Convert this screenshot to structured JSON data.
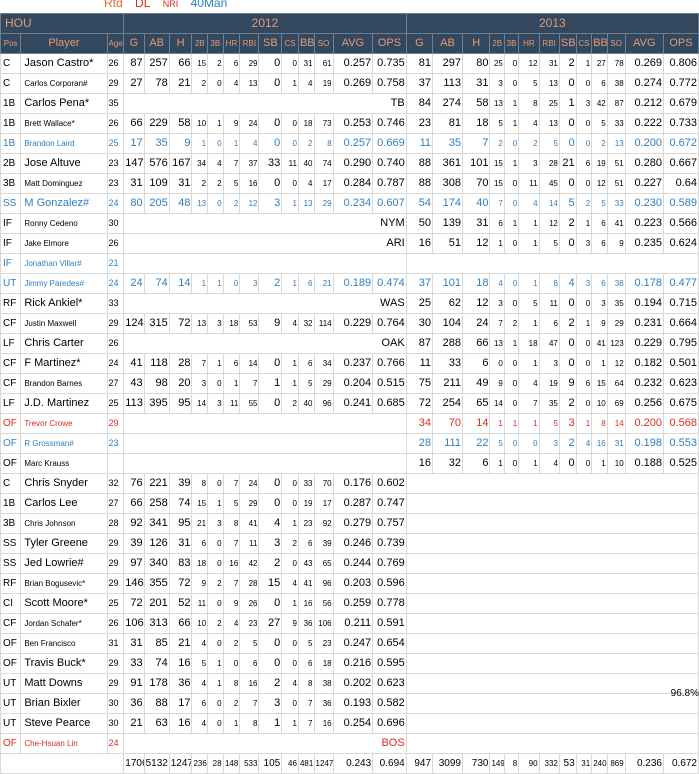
{
  "legend": [
    {
      "label": "Rtd",
      "color": "#dd6a20"
    },
    {
      "label": "DL",
      "color": "#dd2a20"
    },
    {
      "label": "NRI",
      "color": "#dd2a20"
    },
    {
      "label": "40Man",
      "color": "#2e7ec2"
    }
  ],
  "header": {
    "team": "HOU",
    "season1": "2012",
    "season2": "2013",
    "col_pos": "Pos",
    "col_player": "Player",
    "col_age": "Age",
    "stats": [
      "G",
      "AB",
      "H",
      "2B",
      "3B",
      "HR",
      "RBI",
      "SB",
      "CS",
      "BB",
      "SO",
      "AVG",
      "OPS"
    ],
    "stats2013": [
      "G",
      "AB",
      "H",
      "2B",
      "3B",
      "HR",
      "RBI",
      "SB",
      "CS",
      "BB",
      "SO",
      "AVG",
      "OPS"
    ]
  },
  "rows": [
    {
      "pos": "C",
      "name": "Jason Castro*",
      "age": "26",
      "s12": [
        "87",
        "257",
        "66",
        "15",
        "2",
        "6",
        "29",
        "0",
        "0",
        "31",
        "61",
        "0.257",
        "0.735"
      ],
      "s13": [
        "81",
        "297",
        "80",
        "25",
        "0",
        "12",
        "31",
        "2",
        "1",
        "27",
        "78",
        "0.269",
        "0.806"
      ],
      "style": "normal"
    },
    {
      "pos": "C",
      "name": "Carlos Corporan#",
      "age": "29",
      "s12": [
        "27",
        "78",
        "21",
        "2",
        "0",
        "4",
        "13",
        "0",
        "1",
        "4",
        "19",
        "0.269",
        "0.758"
      ],
      "s13": [
        "37",
        "113",
        "31",
        "3",
        "0",
        "5",
        "13",
        "0",
        "0",
        "6",
        "38",
        "0.274",
        "0.772"
      ],
      "style": "normal",
      "smallname": true
    },
    {
      "pos": "1B",
      "name": "Carlos Pena*",
      "age": "35",
      "team12": "TB",
      "s13": [
        "84",
        "274",
        "58",
        "13",
        "1",
        "8",
        "25",
        "1",
        "3",
        "42",
        "87",
        "0.212",
        "0.679"
      ],
      "style": "normal"
    },
    {
      "pos": "1B",
      "name": "Brett Wallace*",
      "age": "26",
      "s12": [
        "66",
        "229",
        "58",
        "10",
        "1",
        "9",
        "24",
        "0",
        "0",
        "18",
        "73",
        "0.253",
        "0.746"
      ],
      "s13": [
        "23",
        "81",
        "18",
        "5",
        "1",
        "4",
        "13",
        "0",
        "0",
        "5",
        "33",
        "0.222",
        "0.733"
      ],
      "style": "normal",
      "smallname": true
    },
    {
      "pos": "1B",
      "name": "Brandon Laird",
      "age": "25",
      "s12": [
        "17",
        "35",
        "9",
        "1",
        "0",
        "1",
        "4",
        "0",
        "0",
        "2",
        "8",
        "0.257",
        "0.669"
      ],
      "s13": [
        "11",
        "35",
        "7",
        "2",
        "0",
        "2",
        "5",
        "0",
        "0",
        "2",
        "13",
        "0.200",
        "0.672"
      ],
      "style": "blue",
      "smallname": true
    },
    {
      "pos": "2B",
      "name": "Jose Altuve",
      "age": "23",
      "s12": [
        "147",
        "576",
        "167",
        "34",
        "4",
        "7",
        "37",
        "33",
        "11",
        "40",
        "74",
        "0.290",
        "0.740"
      ],
      "s13": [
        "88",
        "361",
        "101",
        "15",
        "1",
        "3",
        "28",
        "21",
        "6",
        "19",
        "51",
        "0.280",
        "0.667"
      ],
      "style": "normal"
    },
    {
      "pos": "3B",
      "name": "Matt Dominguez",
      "age": "23",
      "s12": [
        "31",
        "109",
        "31",
        "2",
        "2",
        "5",
        "16",
        "0",
        "0",
        "4",
        "17",
        "0.284",
        "0.787"
      ],
      "s13": [
        "88",
        "308",
        "70",
        "15",
        "0",
        "11",
        "45",
        "0",
        "0",
        "12",
        "51",
        "0.227",
        "0.64"
      ],
      "style": "normal",
      "smallname": true
    },
    {
      "pos": "SS",
      "name": "M Gonzalez#",
      "age": "24",
      "s12": [
        "80",
        "205",
        "48",
        "13",
        "0",
        "2",
        "12",
        "3",
        "1",
        "13",
        "29",
        "0.234",
        "0.607"
      ],
      "s13": [
        "54",
        "174",
        "40",
        "7",
        "0",
        "4",
        "14",
        "5",
        "2",
        "5",
        "33",
        "0.230",
        "0.589"
      ],
      "style": "blue"
    },
    {
      "pos": "IF",
      "name": "Ronny Cedeno",
      "age": "30",
      "team12": "NYM",
      "s13": [
        "50",
        "139",
        "31",
        "6",
        "1",
        "1",
        "12",
        "2",
        "1",
        "6",
        "41",
        "0.223",
        "0.566"
      ],
      "style": "normal",
      "smallname": true
    },
    {
      "pos": "IF",
      "name": "Jake Elmore",
      "age": "26",
      "team12": "ARI",
      "s13": [
        "16",
        "51",
        "12",
        "1",
        "0",
        "1",
        "5",
        "0",
        "3",
        "6",
        "9",
        "0.235",
        "0.624"
      ],
      "style": "normal",
      "smallname": true
    },
    {
      "pos": "IF",
      "name": "Jonathan Villar#",
      "age": "21",
      "s12": [],
      "s13": [],
      "style": "blue",
      "tinyname": true,
      "empty": true
    },
    {
      "pos": "UT",
      "name": "Jimmy Paredes#",
      "age": "24",
      "s12": [
        "24",
        "74",
        "14",
        "1",
        "1",
        "0",
        "3",
        "2",
        "1",
        "6",
        "21",
        "0.189",
        "0.474"
      ],
      "s13": [
        "37",
        "101",
        "18",
        "4",
        "0",
        "1",
        "8",
        "4",
        "3",
        "6",
        "38",
        "0.178",
        "0.477"
      ],
      "style": "blue",
      "tinyname": true
    },
    {
      "pos": "RF",
      "name": "Rick Ankiel*",
      "age": "33",
      "team12": "WAS",
      "s13": [
        "25",
        "62",
        "12",
        "3",
        "0",
        "5",
        "11",
        "0",
        "0",
        "3",
        "35",
        "0.194",
        "0.715"
      ],
      "style": "normal"
    },
    {
      "pos": "CF",
      "name": "Justin Maxwell",
      "age": "29",
      "s12": [
        "124",
        "315",
        "72",
        "13",
        "3",
        "18",
        "53",
        "9",
        "4",
        "32",
        "114",
        "0.229",
        "0.764"
      ],
      "s13": [
        "30",
        "104",
        "24",
        "7",
        "2",
        "1",
        "6",
        "2",
        "1",
        "9",
        "29",
        "0.231",
        "0.664"
      ],
      "style": "normal",
      "smallname": true
    },
    {
      "pos": "LF",
      "name": "Chris Carter",
      "age": "26",
      "team12": "OAK",
      "s13": [
        "87",
        "288",
        "66",
        "13",
        "1",
        "18",
        "47",
        "0",
        "0",
        "41",
        "123",
        "0.229",
        "0.795"
      ],
      "style": "normal"
    },
    {
      "pos": "CF",
      "name": "F Martinez*",
      "age": "24",
      "s12": [
        "41",
        "118",
        "28",
        "7",
        "1",
        "6",
        "14",
        "0",
        "1",
        "6",
        "34",
        "0.237",
        "0.766"
      ],
      "s13": [
        "11",
        "33",
        "6",
        "0",
        "0",
        "1",
        "3",
        "0",
        "0",
        "1",
        "12",
        "0.182",
        "0.501"
      ],
      "style": "normal"
    },
    {
      "pos": "CF",
      "name": "Brandon Barnes",
      "age": "27",
      "s12": [
        "43",
        "98",
        "20",
        "3",
        "0",
        "1",
        "7",
        "1",
        "1",
        "5",
        "29",
        "0.204",
        "0.515"
      ],
      "s13": [
        "75",
        "211",
        "49",
        "9",
        "0",
        "4",
        "19",
        "9",
        "6",
        "15",
        "64",
        "0.232",
        "0.623"
      ],
      "style": "normal",
      "smallname": true
    },
    {
      "pos": "LF",
      "name": "J.D. Martinez",
      "age": "25",
      "s12": [
        "113",
        "395",
        "95",
        "14",
        "3",
        "11",
        "55",
        "0",
        "2",
        "40",
        "96",
        "0.241",
        "0.685"
      ],
      "s13": [
        "72",
        "254",
        "65",
        "14",
        "0",
        "7",
        "35",
        "2",
        "0",
        "10",
        "69",
        "0.256",
        "0.675"
      ],
      "style": "normal"
    },
    {
      "pos": "OF",
      "name": "Trevor Crowe",
      "age": "29",
      "s12": [],
      "s13": [
        "34",
        "70",
        "14",
        "1",
        "1",
        "1",
        "5",
        "3",
        "1",
        "8",
        "14",
        "0.200",
        "0.568"
      ],
      "style": "red",
      "smallname": true
    },
    {
      "pos": "OF",
      "name": "R Grossman#",
      "age": "23",
      "s12": [],
      "s13": [
        "28",
        "111",
        "22",
        "5",
        "0",
        "0",
        "3",
        "2",
        "4",
        "16",
        "31",
        "0.198",
        "0.553"
      ],
      "style": "blue",
      "smallname": true
    },
    {
      "pos": "OF",
      "name": "Marc Krauss",
      "age": "",
      "s12": [],
      "s13": [
        "16",
        "32",
        "6",
        "1",
        "0",
        "1",
        "4",
        "0",
        "0",
        "1",
        "10",
        "0.188",
        "0.525"
      ],
      "style": "normal",
      "smallname": true
    },
    {
      "pos": "C",
      "name": "Chris Snyder",
      "age": "32",
      "s12": [
        "76",
        "221",
        "39",
        "8",
        "0",
        "7",
        "24",
        "0",
        "0",
        "33",
        "70",
        "0.176",
        "0.602"
      ],
      "s13": [],
      "style": "normal"
    },
    {
      "pos": "1B",
      "name": "Carlos Lee",
      "age": "27",
      "s12": [
        "66",
        "258",
        "74",
        "15",
        "1",
        "5",
        "29",
        "0",
        "0",
        "19",
        "17",
        "0.287",
        "0.747"
      ],
      "s13": [],
      "style": "normal"
    },
    {
      "pos": "3B",
      "name": "Chris Johnson",
      "age": "28",
      "s12": [
        "92",
        "341",
        "95",
        "21",
        "3",
        "8",
        "41",
        "4",
        "1",
        "23",
        "92",
        "0.279",
        "0.757"
      ],
      "s13": [],
      "style": "normal",
      "smallname": true
    },
    {
      "pos": "SS",
      "name": "Tyler Greene",
      "age": "29",
      "s12": [
        "39",
        "126",
        "31",
        "6",
        "0",
        "7",
        "11",
        "3",
        "2",
        "6",
        "39",
        "0.246",
        "0.739"
      ],
      "s13": [],
      "style": "normal"
    },
    {
      "pos": "SS",
      "name": "Jed Lowrie#",
      "age": "29",
      "s12": [
        "97",
        "340",
        "83",
        "18",
        "0",
        "16",
        "42",
        "2",
        "0",
        "43",
        "65",
        "0.244",
        "0.769"
      ],
      "s13": [],
      "style": "normal"
    },
    {
      "pos": "RF",
      "name": "Brian Bogusevic*",
      "age": "29",
      "s12": [
        "146",
        "355",
        "72",
        "9",
        "2",
        "7",
        "28",
        "15",
        "4",
        "41",
        "96",
        "0.203",
        "0.596"
      ],
      "s13": [],
      "style": "normal",
      "tinyname": true
    },
    {
      "pos": "CI",
      "name": "Scott Moore*",
      "age": "25",
      "s12": [
        "72",
        "201",
        "52",
        "11",
        "0",
        "9",
        "26",
        "0",
        "1",
        "16",
        "56",
        "0.259",
        "0.778"
      ],
      "s13": [],
      "style": "normal"
    },
    {
      "pos": "CF",
      "name": "Jordan Schafer*",
      "age": "26",
      "s12": [
        "106",
        "313",
        "66",
        "10",
        "2",
        "4",
        "23",
        "27",
        "9",
        "36",
        "106",
        "0.211",
        "0.591"
      ],
      "s13": [],
      "style": "normal",
      "tinyname": true
    },
    {
      "pos": "OF",
      "name": "Ben Francisco",
      "age": "31",
      "s12": [
        "31",
        "85",
        "21",
        "4",
        "0",
        "2",
        "5",
        "0",
        "0",
        "5",
        "23",
        "0.247",
        "0.654"
      ],
      "s13": [],
      "style": "normal",
      "smallname": true
    },
    {
      "pos": "OF",
      "name": "Travis Buck*",
      "age": "29",
      "s12": [
        "33",
        "74",
        "16",
        "5",
        "1",
        "0",
        "6",
        "0",
        "0",
        "6",
        "18",
        "0.216",
        "0.595"
      ],
      "s13": [],
      "style": "normal"
    },
    {
      "pos": "UT",
      "name": "Matt Downs",
      "age": "29",
      "s12": [
        "91",
        "178",
        "36",
        "4",
        "1",
        "8",
        "16",
        "2",
        "4",
        "8",
        "38",
        "0.202",
        "0.623"
      ],
      "s13": [],
      "style": "normal"
    },
    {
      "pos": "UT",
      "name": "Brian Bixler",
      "age": "30",
      "s12": [
        "36",
        "88",
        "17",
        "6",
        "0",
        "2",
        "7",
        "3",
        "0",
        "7",
        "36",
        "0.193",
        "0.582"
      ],
      "s13": [],
      "style": "normal"
    },
    {
      "pos": "UT",
      "name": "Steve Pearce",
      "age": "30",
      "s12": [
        "21",
        "63",
        "16",
        "4",
        "0",
        "1",
        "8",
        "1",
        "1",
        "7",
        "16",
        "0.254",
        "0.696"
      ],
      "s13": [],
      "style": "normal"
    },
    {
      "pos": "OF",
      "name": "Che-Hsuan Lin",
      "age": "24",
      "team12": "BOS",
      "s12": [],
      "s13": [],
      "style": "red",
      "smallname": true
    }
  ],
  "totals": {
    "s12": [
      "1706",
      "5132",
      "1247",
      "236",
      "28",
      "148",
      "533",
      "105",
      "46",
      "481",
      "1247",
      "0.243",
      "0.694"
    ],
    "s13": [
      "947",
      "3099",
      "730",
      "149",
      "8",
      "90",
      "332",
      "53",
      "31",
      "240",
      "869",
      "0.236",
      "0.672"
    ],
    "pct": "96.8%"
  }
}
